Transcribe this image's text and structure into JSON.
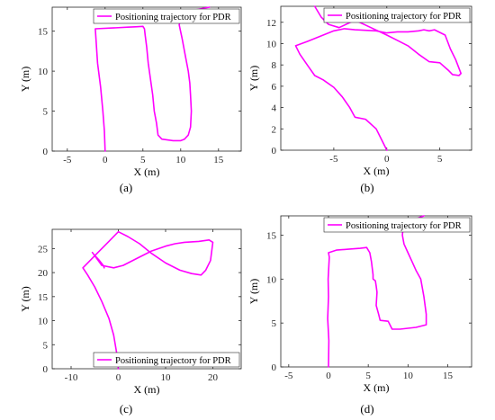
{
  "chart_data": [
    {
      "type": "line",
      "panel_label": "(a)",
      "xlabel": "X (m)",
      "ylabel": "Y (m)",
      "xlim": [
        -7,
        18
      ],
      "ylim": [
        0,
        18
      ],
      "xticks": [
        -5,
        0,
        5,
        10,
        15
      ],
      "yticks": [
        0,
        5,
        10,
        15
      ],
      "legend": "top-right",
      "series": [
        {
          "name": "Positioning trajectory for PDR",
          "color": "#ff00ff",
          "x": [
            0,
            -0.1,
            -0.3,
            -0.6,
            -1.0,
            -1.3,
            1.0,
            3.0,
            4.0,
            5.0,
            5.2,
            5.3,
            5.5,
            5.7,
            6.0,
            6.3,
            6.5,
            6.8,
            7.0,
            7.5,
            9.0,
            10.0,
            10.5,
            11.0,
            11.3,
            11.4,
            11.3,
            11.2,
            11.0,
            10.6,
            10.2,
            9.8,
            10.0,
            10.8,
            11.5,
            13.8
          ],
          "y": [
            0,
            2.5,
            5.0,
            8.0,
            11.0,
            15.3,
            15.4,
            15.5,
            15.55,
            15.6,
            15.3,
            14.5,
            13.0,
            11.0,
            9.0,
            7.0,
            5.0,
            3.5,
            2.0,
            1.5,
            1.3,
            1.3,
            1.5,
            2.0,
            3.0,
            5.0,
            7.0,
            8.5,
            10.0,
            12.0,
            14.0,
            15.8,
            16.5,
            17.2,
            17.6,
            18.0
          ]
        }
      ]
    },
    {
      "type": "line",
      "panel_label": "(b)",
      "xlabel": "X (m)",
      "ylabel": "Y (m)",
      "xlim": [
        -10,
        8
      ],
      "ylim": [
        0,
        13.5
      ],
      "xticks": [
        -5,
        0,
        5
      ],
      "yticks": [
        0,
        2,
        4,
        6,
        8,
        10,
        12
      ],
      "legend": "top-right",
      "series": [
        {
          "name": "Positioning trajectory for PDR",
          "color": "#ff00ff",
          "x": [
            0,
            -0.5,
            -1.0,
            -2.0,
            -3.0,
            -3.5,
            -4.2,
            -5.0,
            -6.0,
            -6.8,
            -7.5,
            -8.2,
            -8.6,
            -7.5,
            -6.0,
            -5.0,
            -4.0,
            -3.0,
            -1.0,
            0,
            1.0,
            2.0,
            3.0,
            3.5,
            4.0,
            4.5,
            5.5,
            6.0,
            6.5,
            7.0,
            6.8,
            6.2,
            5.8,
            5.0,
            4.0,
            3.0,
            2.0,
            1.0,
            0,
            -1.5,
            -3.0,
            -4.5,
            -5.5,
            -6.2,
            -6.8
          ],
          "y": [
            0,
            1.0,
            2.0,
            2.9,
            3.1,
            4.0,
            5.0,
            5.9,
            6.6,
            7.0,
            8.0,
            9.0,
            9.8,
            10.2,
            10.8,
            11.2,
            11.4,
            11.3,
            11.2,
            11.0,
            11.1,
            11.1,
            11.2,
            11.3,
            11.2,
            11.3,
            10.8,
            9.5,
            8.5,
            7.2,
            7.0,
            7.1,
            7.5,
            8.2,
            8.3,
            9.0,
            9.8,
            10.3,
            10.8,
            11.5,
            12.2,
            11.5,
            11.8,
            12.5,
            13.5
          ]
        }
      ]
    },
    {
      "type": "line",
      "panel_label": "(c)",
      "xlabel": "X (m)",
      "ylabel": "Y (m)",
      "xlim": [
        -14,
        26
      ],
      "ylim": [
        0,
        29
      ],
      "xticks": [
        -10,
        0,
        10,
        20
      ],
      "yticks": [
        0,
        5,
        10,
        15,
        20,
        25
      ],
      "legend": "bottom-right",
      "series": [
        {
          "name": "Positioning trajectory for PDR",
          "color": "#ff00ff",
          "x": [
            0,
            -0.3,
            -1.0,
            -2.0,
            -3.5,
            -5.0,
            -6.5,
            -7.5,
            -6.5,
            -4.5,
            -2.0,
            0,
            2.0,
            4.5,
            7.0,
            10.0,
            13.0,
            15.5,
            17.5,
            18.5,
            19.5,
            20.0,
            19.2,
            17.0,
            14.0,
            12.0,
            10.0,
            7.0,
            4.0,
            1.0,
            -1.0,
            -3.5,
            -5.5,
            -5.2,
            -4.0,
            -3.2,
            -3.0
          ],
          "y": [
            0,
            3.0,
            7.0,
            10.5,
            14.0,
            17.0,
            19.5,
            21.0,
            22.0,
            24.0,
            26.5,
            28.5,
            27.5,
            26.0,
            24.0,
            22.0,
            20.5,
            19.8,
            19.5,
            20.5,
            22.5,
            26.3,
            26.8,
            26.5,
            26.3,
            26.0,
            25.5,
            24.5,
            23.0,
            21.5,
            21.0,
            21.5,
            24.2,
            23.8,
            22.5,
            21.5,
            21.0
          ]
        }
      ]
    },
    {
      "type": "line",
      "panel_label": "(d)",
      "xlabel": "X (m)",
      "ylabel": "Y (m)",
      "xlim": [
        -6,
        18
      ],
      "ylim": [
        0,
        17.2
      ],
      "xticks": [
        -5,
        0,
        5,
        10,
        15
      ],
      "yticks": [
        0,
        5,
        10,
        15
      ],
      "legend": "top-right",
      "series": [
        {
          "name": "Positioning trajectory for PDR",
          "color": "#ff00ff",
          "x": [
            0,
            0.05,
            -0.1,
            0.0,
            -0.05,
            0.1,
            0,
            1.0,
            2.5,
            4.0,
            4.8,
            5.2,
            5.4,
            5.6,
            5.6,
            5.9,
            6.0,
            6.1,
            6.0,
            6.3,
            6.5,
            7.5,
            8.0,
            9.0,
            10.0,
            11.0,
            12.3,
            12.3,
            12.0,
            11.6,
            11.0,
            10.5,
            10.0,
            9.5,
            9.3,
            9.4,
            10.5,
            12.0
          ],
          "y": [
            0,
            3.0,
            5.5,
            8.0,
            10.0,
            12.5,
            13.0,
            13.3,
            13.4,
            13.5,
            13.6,
            13.0,
            12.0,
            10.5,
            10.0,
            9.8,
            9.2,
            8.5,
            7.0,
            6.0,
            5.3,
            5.2,
            4.3,
            4.3,
            4.4,
            4.5,
            4.8,
            6.0,
            8.0,
            10.0,
            11.0,
            12.0,
            13.0,
            14.0,
            15.0,
            16.0,
            16.7,
            17.2
          ]
        }
      ]
    }
  ]
}
